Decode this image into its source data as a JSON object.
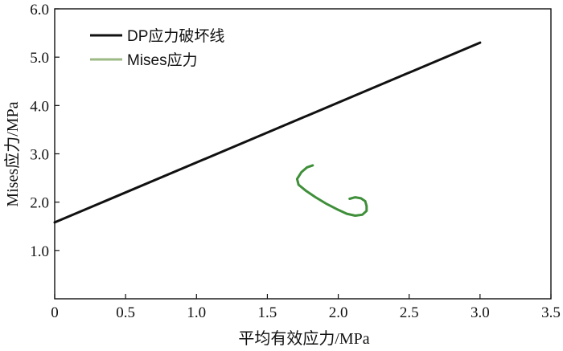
{
  "chart_data": {
    "type": "line",
    "xlabel": "平均有效应力/MPa",
    "ylabel": "Mises应力/MPa",
    "xlim": [
      0,
      3.5
    ],
    "ylim": [
      0,
      6.0
    ],
    "x_ticks": [
      "0",
      "0.5",
      "1.0",
      "1.5",
      "2.0",
      "2.5",
      "3.0",
      "3.5"
    ],
    "y_ticks": [
      "1.0",
      "2.0",
      "3.0",
      "4.0",
      "5.0",
      "6.0"
    ],
    "grid": false,
    "legend_position": "top-left",
    "series": [
      {
        "name": "DP应力破坏线",
        "color": "#111111",
        "points": [
          [
            0,
            1.58
          ],
          [
            3.0,
            5.3
          ]
        ]
      },
      {
        "name": "Mises应力",
        "color": "#3f8f3a",
        "points": [
          [
            1.82,
            2.76
          ],
          [
            1.78,
            2.72
          ],
          [
            1.74,
            2.62
          ],
          [
            1.71,
            2.48
          ],
          [
            1.72,
            2.36
          ],
          [
            1.77,
            2.24
          ],
          [
            1.84,
            2.1
          ],
          [
            1.92,
            1.96
          ],
          [
            2.0,
            1.84
          ],
          [
            2.06,
            1.76
          ],
          [
            2.12,
            1.72
          ],
          [
            2.17,
            1.74
          ],
          [
            2.2,
            1.82
          ],
          [
            2.2,
            1.92
          ],
          [
            2.19,
            2.02
          ],
          [
            2.16,
            2.08
          ],
          [
            2.12,
            2.1
          ],
          [
            2.08,
            2.07
          ]
        ]
      }
    ]
  }
}
